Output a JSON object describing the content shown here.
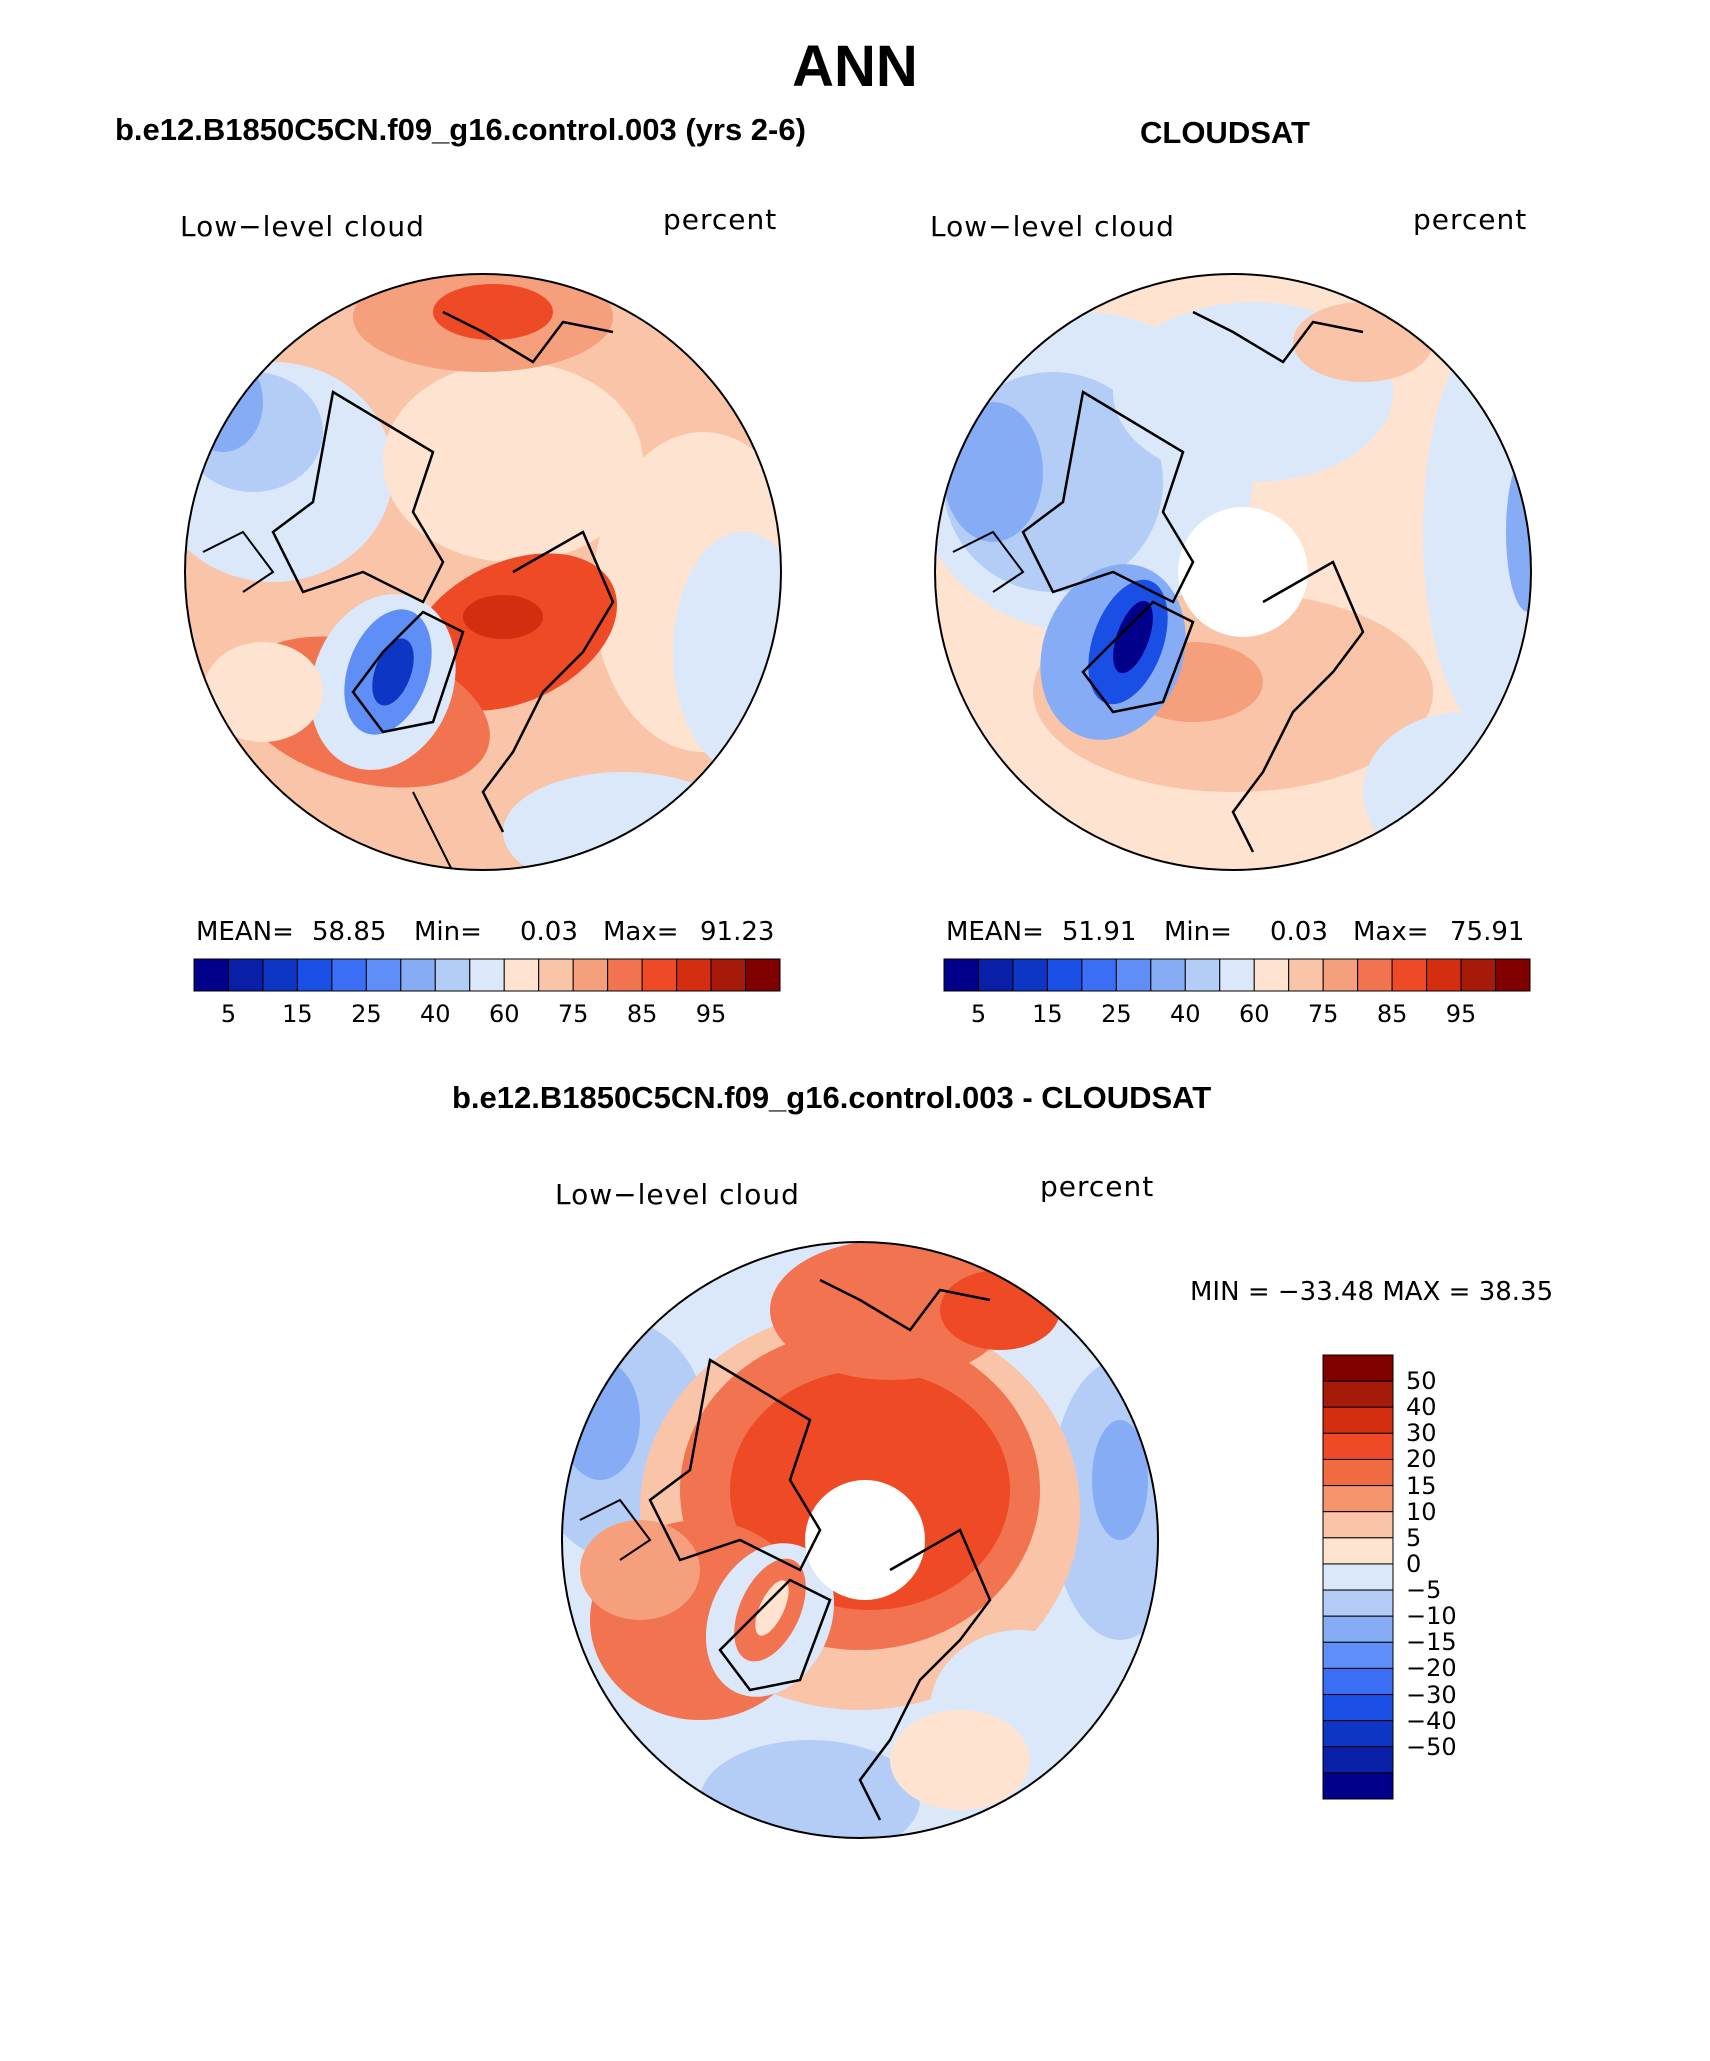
{
  "figure": {
    "title": "ANN",
    "panels": [
      {
        "id": "model",
        "case_title": "b.e12.B1850C5CN.f09_g16.control.003 (yrs 2-6)",
        "variable_label": "Low−level cloud",
        "units_label": "percent",
        "stats": {
          "mean_label": "MEAN=",
          "mean": "58.85",
          "min_label": "Min=",
          "min": "0.03",
          "max_label": "Max=",
          "max": "91.23"
        }
      },
      {
        "id": "obs",
        "case_title": "CLOUDSAT",
        "variable_label": "Low−level cloud",
        "units_label": "percent",
        "stats": {
          "mean_label": "MEAN=",
          "mean": "51.91",
          "min_label": "Min=",
          "min": "0.03",
          "max_label": "Max=",
          "max": "75.91"
        }
      },
      {
        "id": "diff",
        "case_title": "b.e12.B1850C5CN.f09_g16.control.003 - CLOUDSAT",
        "variable_label": "Low−level cloud",
        "units_label": "percent",
        "minmax": "MIN = −33.48 MAX =   38.35"
      }
    ]
  },
  "chart_data": [
    {
      "type": "heatmap",
      "projection": "north-polar-stereographic",
      "title": "b.e12.B1850C5CN.f09_g16.control.003 (yrs 2-6)",
      "colorbar": {
        "orientation": "horizontal",
        "levels": [
          5,
          10,
          15,
          20,
          25,
          30,
          40,
          50,
          60,
          70,
          75,
          80,
          85,
          90,
          95
        ],
        "tick_labels": [
          "5",
          "15",
          "25",
          "40",
          "60",
          "75",
          "85",
          "95"
        ],
        "colors": [
          "#00008b",
          "#0a1fa8",
          "#0d36c4",
          "#1a4fe6",
          "#3a6ef5",
          "#5f8ef7",
          "#86acf5",
          "#b4cdf7",
          "#dbe8fa",
          "#fde3d0",
          "#f9c4a8",
          "#f69f7d",
          "#f27350",
          "#ee4a25",
          "#d42d10",
          "#a51a08",
          "#800000"
        ]
      },
      "mean": 58.85,
      "min": 0.03,
      "max": 91.23
    },
    {
      "type": "heatmap",
      "projection": "north-polar-stereographic",
      "title": "CLOUDSAT",
      "colorbar": {
        "orientation": "horizontal",
        "levels": [
          5,
          10,
          15,
          20,
          25,
          30,
          40,
          50,
          60,
          70,
          75,
          80,
          85,
          90,
          95
        ],
        "tick_labels": [
          "5",
          "15",
          "25",
          "40",
          "60",
          "75",
          "85",
          "95"
        ],
        "colors": [
          "#00008b",
          "#0a1fa8",
          "#0d36c4",
          "#1a4fe6",
          "#3a6ef5",
          "#5f8ef7",
          "#86acf5",
          "#b4cdf7",
          "#dbe8fa",
          "#fde3d0",
          "#f9c4a8",
          "#f69f7d",
          "#f27350",
          "#ee4a25",
          "#d42d10",
          "#a51a08",
          "#800000"
        ]
      },
      "mean": 51.91,
      "min": 0.03,
      "max": 75.91
    },
    {
      "type": "heatmap",
      "projection": "north-polar-stereographic",
      "title": "b.e12.B1850C5CN.f09_g16.control.003 - CLOUDSAT",
      "colorbar": {
        "orientation": "vertical",
        "tick_labels": [
          "50",
          "40",
          "30",
          "20",
          "15",
          "10",
          "5",
          "0",
          "−5",
          "−10",
          "−15",
          "−20",
          "−30",
          "−40",
          "−50"
        ],
        "colors": [
          "#800000",
          "#a51a08",
          "#d42d10",
          "#ee4a25",
          "#f26a3f",
          "#f5946d",
          "#f9c4a8",
          "#fde3d0",
          "#dbe8fa",
          "#b4cdf7",
          "#86acf5",
          "#5f8ef7",
          "#3a6ef5",
          "#1a4fe6",
          "#0d36c4",
          "#0a1fa8",
          "#00008b"
        ]
      },
      "min": -33.48,
      "max": 38.35
    }
  ]
}
